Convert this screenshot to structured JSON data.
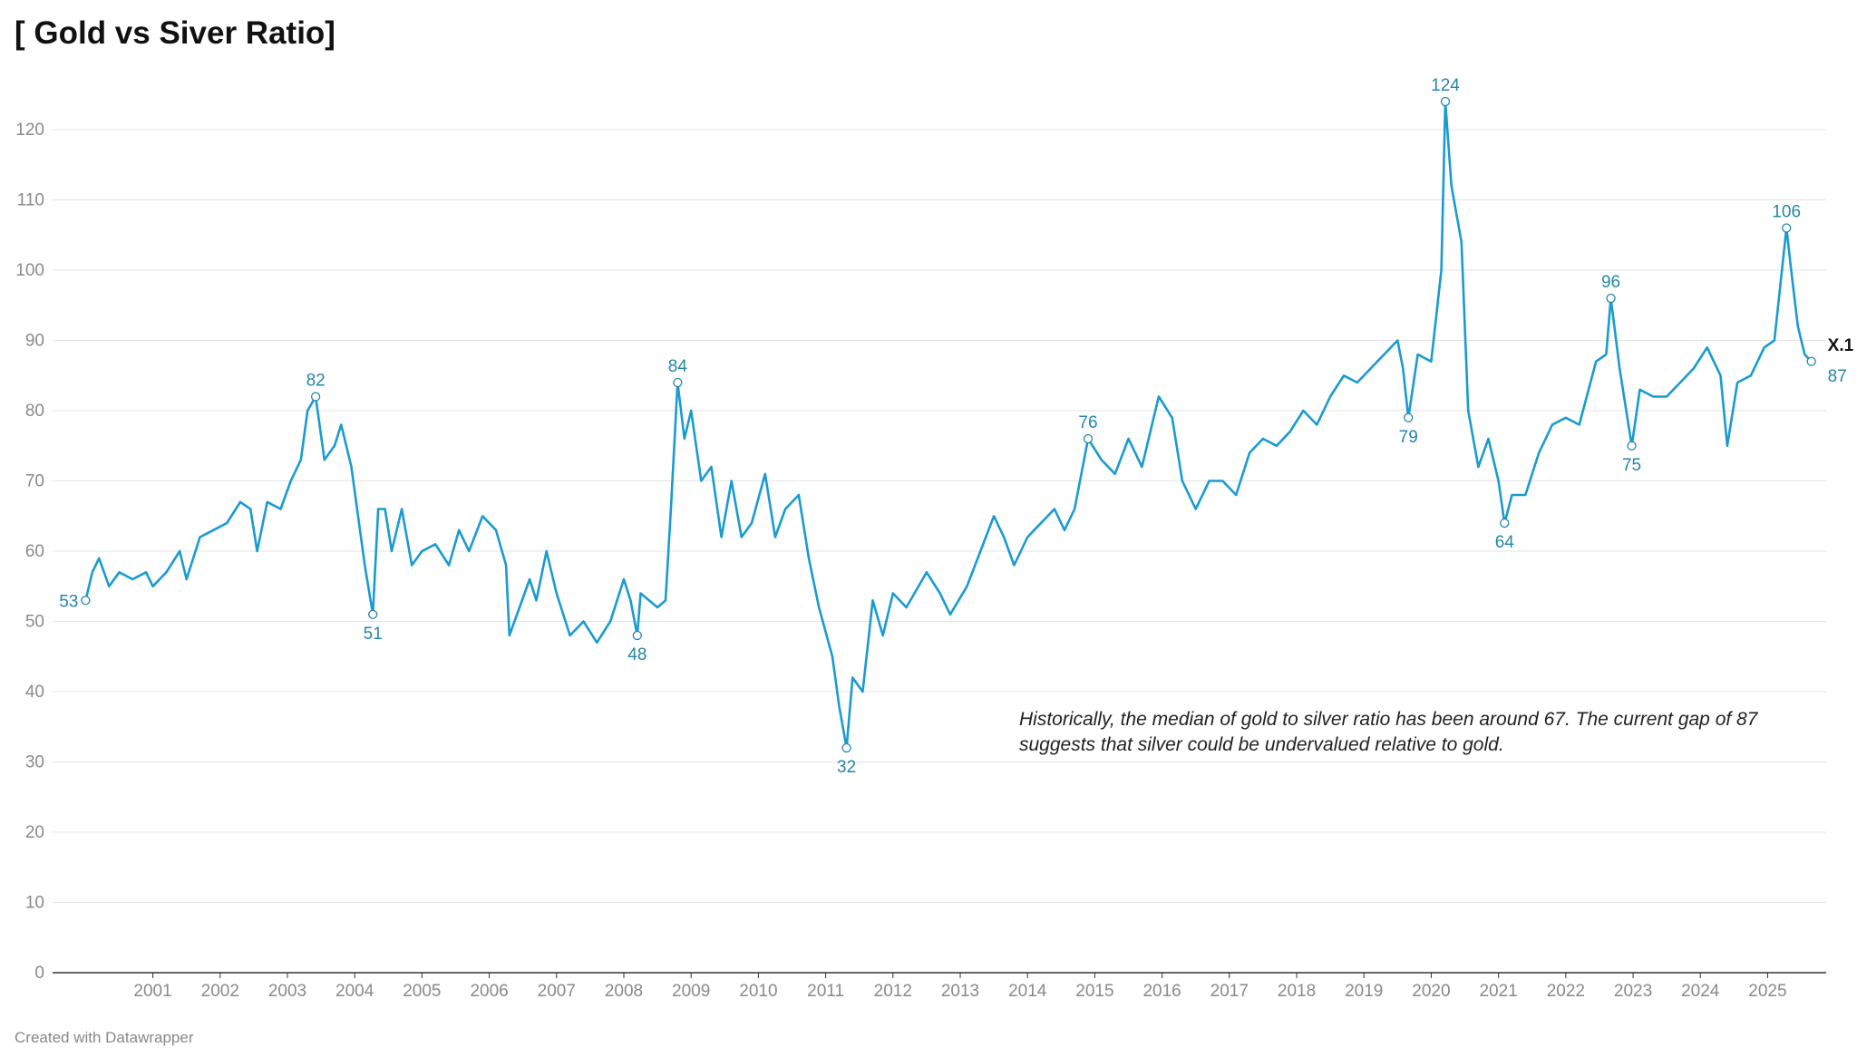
{
  "chart_data": {
    "type": "line",
    "title": "[ Gold vs Siver Ratio]",
    "note": "Historically, the median of gold to silver ratio has been around 67. The current gap of 87 suggests that silver could be undervalued relative to gold.",
    "footer": "Created with Datawrapper",
    "series": [
      {
        "name": "X.1",
        "color": "#1a9bd0",
        "x": [
          2000.0,
          2000.1,
          2000.2,
          2000.35,
          2000.5,
          2000.7,
          2000.9,
          2001.0,
          2001.2,
          2001.4,
          2001.5,
          2001.7,
          2001.9,
          2002.1,
          2002.3,
          2002.45,
          2002.55,
          2002.7,
          2002.9,
          2003.05,
          2003.2,
          2003.3,
          2003.42,
          2003.55,
          2003.7,
          2003.8,
          2003.95,
          2004.05,
          2004.15,
          2004.27,
          2004.35,
          2004.45,
          2004.55,
          2004.7,
          2004.85,
          2005.0,
          2005.2,
          2005.4,
          2005.55,
          2005.7,
          2005.9,
          2006.1,
          2006.25,
          2006.3,
          2006.45,
          2006.6,
          2006.7,
          2006.85,
          2007.0,
          2007.2,
          2007.4,
          2007.6,
          2007.8,
          2008.0,
          2008.1,
          2008.2,
          2008.25,
          2008.5,
          2008.62,
          2008.7,
          2008.8,
          2008.9,
          2009.0,
          2009.15,
          2009.3,
          2009.45,
          2009.6,
          2009.75,
          2009.9,
          2010.1,
          2010.25,
          2010.4,
          2010.6,
          2010.75,
          2010.9,
          2011.1,
          2011.2,
          2011.31,
          2011.4,
          2011.55,
          2011.7,
          2011.85,
          2012.0,
          2012.2,
          2012.5,
          2012.7,
          2012.85,
          2013.1,
          2013.3,
          2013.5,
          2013.65,
          2013.8,
          2014.0,
          2014.2,
          2014.4,
          2014.55,
          2014.7,
          2014.9,
          2015.1,
          2015.3,
          2015.5,
          2015.7,
          2015.95,
          2016.15,
          2016.3,
          2016.5,
          2016.7,
          2016.9,
          2017.1,
          2017.3,
          2017.5,
          2017.7,
          2017.9,
          2018.1,
          2018.3,
          2018.5,
          2018.7,
          2018.9,
          2019.1,
          2019.3,
          2019.5,
          2019.58,
          2019.66,
          2019.8,
          2020.0,
          2020.15,
          2020.21,
          2020.3,
          2020.45,
          2020.55,
          2020.7,
          2020.85,
          2021.0,
          2021.09,
          2021.2,
          2021.4,
          2021.6,
          2021.8,
          2022.0,
          2022.2,
          2022.45,
          2022.6,
          2022.67,
          2022.8,
          2022.98,
          2023.1,
          2023.3,
          2023.5,
          2023.7,
          2023.9,
          2024.1,
          2024.3,
          2024.4,
          2024.55,
          2024.75,
          2024.95,
          2025.1,
          2025.28,
          2025.35,
          2025.45,
          2025.55,
          2025.65
        ],
        "values": [
          53,
          57,
          59,
          55,
          57,
          56,
          57,
          55,
          57,
          60,
          56,
          62,
          63,
          64,
          67,
          66,
          60,
          67,
          66,
          70,
          73,
          80,
          82,
          73,
          75,
          78,
          72,
          65,
          58,
          51,
          66,
          66,
          60,
          66,
          58,
          60,
          61,
          58,
          63,
          60,
          65,
          63,
          58,
          48,
          52,
          56,
          53,
          60,
          54,
          48,
          50,
          47,
          50,
          56,
          53,
          48,
          54,
          52,
          53,
          66,
          84,
          76,
          80,
          70,
          72,
          62,
          70,
          62,
          64,
          71,
          62,
          66,
          68,
          59,
          52,
          45,
          38,
          32,
          42,
          40,
          53,
          48,
          54,
          52,
          57,
          54,
          51,
          55,
          60,
          65,
          62,
          58,
          62,
          64,
          66,
          63,
          66,
          76,
          73,
          71,
          76,
          72,
          82,
          79,
          70,
          66,
          70,
          70,
          68,
          74,
          76,
          75,
          77,
          80,
          78,
          82,
          85,
          84,
          86,
          88,
          90,
          86,
          79,
          88,
          87,
          100,
          124,
          112,
          104,
          80,
          72,
          76,
          70,
          64,
          68,
          68,
          74,
          78,
          79,
          78,
          87,
          88,
          96,
          86,
          75,
          83,
          82,
          82,
          84,
          86,
          89,
          85,
          75,
          84,
          85,
          89,
          90,
          106,
          100,
          92,
          88,
          87
        ]
      }
    ],
    "highlights": [
      {
        "x": 2000.0,
        "y": 53
      },
      {
        "x": 2003.42,
        "y": 82
      },
      {
        "x": 2004.27,
        "y": 51
      },
      {
        "x": 2008.2,
        "y": 48
      },
      {
        "x": 2008.8,
        "y": 84
      },
      {
        "x": 2011.31,
        "y": 32
      },
      {
        "x": 2014.9,
        "y": 76
      },
      {
        "x": 2019.66,
        "y": 79
      },
      {
        "x": 2020.21,
        "y": 124
      },
      {
        "x": 2021.09,
        "y": 64
      },
      {
        "x": 2022.67,
        "y": 96
      },
      {
        "x": 2022.98,
        "y": 75
      },
      {
        "x": 2025.28,
        "y": 106
      },
      {
        "x": 2025.65,
        "y": 87
      }
    ],
    "xlim": [
      1999.51,
      2025.87
    ],
    "ylim": [
      0,
      120
    ],
    "xticks": [
      2001,
      2002,
      2003,
      2004,
      2005,
      2006,
      2007,
      2008,
      2009,
      2010,
      2011,
      2012,
      2013,
      2014,
      2015,
      2016,
      2017,
      2018,
      2019,
      2020,
      2021,
      2022,
      2023,
      2024,
      2025
    ],
    "yticks": [
      0,
      10,
      20,
      30,
      40,
      50,
      60,
      70,
      80,
      90,
      100,
      110,
      120
    ],
    "grid": true,
    "label_color": "#2585a8"
  }
}
